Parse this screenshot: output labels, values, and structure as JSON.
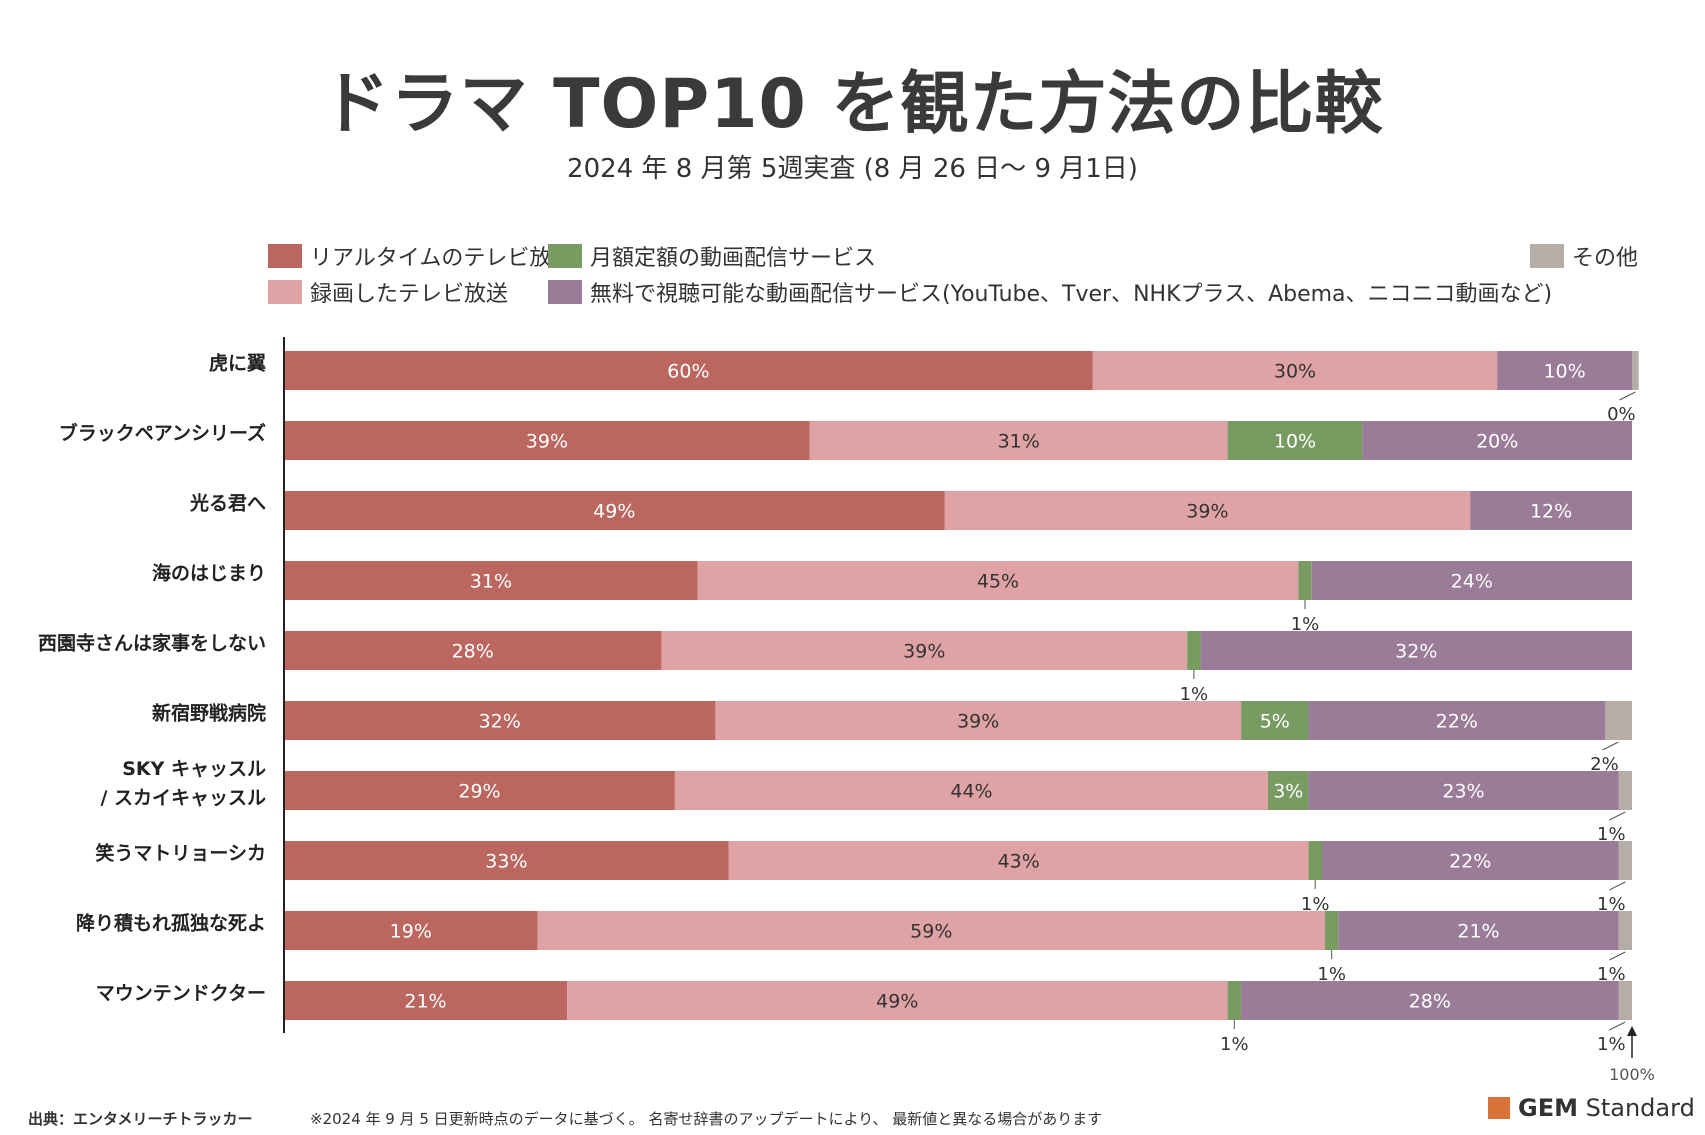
{
  "title": "ドラマ TOP10 を観た方法の比較",
  "subtitle": "2024 年 8 月第 5週実査 (8 月 26 日〜 9 月1日)",
  "footer": {
    "source": "出典：エンタメリーチトラッカー",
    "note": "※2024 年 9 月 5 日更新時点のデータに基づく。 名寄せ辞書のアップデートにより、 最新値と異なる場合があります"
  },
  "brand": {
    "bold": "GEM",
    "rest": " Standard"
  },
  "colors": {
    "realtime": "#bb6760",
    "recorded": "#e0a3a5",
    "subscription": "#789b62",
    "free": "#9b7c98",
    "other": "#b5aea8"
  },
  "chart_data": {
    "type": "bar",
    "orientation": "horizontal",
    "stacked": "100%",
    "categories": [
      "虎に翼",
      "ブラックペアンシリーズ",
      "光る君へ",
      "海のはじまり",
      "西園寺さんは家事をしない",
      "新宿野戦病院",
      "SKY キャッスル / スカイキャッスル",
      "笑うマトリョーシカ",
      "降り積もれ孤独な死よ",
      "マウンテンドクター"
    ],
    "category_lines": [
      [
        "虎に翼"
      ],
      [
        "ブラックペアンシリーズ"
      ],
      [
        "光る君へ"
      ],
      [
        "海のはじまり"
      ],
      [
        "西園寺さんは家事をしない"
      ],
      [
        "新宿野戦病院"
      ],
      [
        "SKY キャッスル",
        "/ スカイキャッスル"
      ],
      [
        "笑うマトリョーシカ"
      ],
      [
        "降り積もれ孤独な死よ"
      ],
      [
        "マウンテンドクター"
      ]
    ],
    "series": [
      {
        "key": "realtime",
        "name": "リアルタイムのテレビ放送",
        "values": [
          60,
          39,
          49,
          31,
          28,
          32,
          29,
          33,
          19,
          21
        ]
      },
      {
        "key": "recorded",
        "name": "録画したテレビ放送",
        "values": [
          30,
          31,
          39,
          45,
          39,
          39,
          44,
          43,
          59,
          49
        ]
      },
      {
        "key": "subscription",
        "name": "月額定額の動画配信サービス",
        "values": [
          0,
          10,
          0,
          1,
          1,
          5,
          3,
          1,
          1,
          1
        ]
      },
      {
        "key": "free",
        "name": "無料で視聴可能な動画配信サービス(YouTube、Tver、NHKプラス、Abema、ニコニコ動画など)",
        "values": [
          10,
          20,
          12,
          24,
          32,
          22,
          23,
          22,
          21,
          28
        ]
      },
      {
        "key": "other",
        "name": "その他",
        "values": [
          0,
          0,
          0,
          0,
          0,
          2,
          1,
          1,
          1,
          1
        ]
      }
    ],
    "label_texts": [
      [
        "60%",
        "30%",
        "",
        "10%",
        "0%"
      ],
      [
        "39%",
        "31%",
        "10%",
        "20%",
        ""
      ],
      [
        "49%",
        "39%",
        "",
        "12%",
        ""
      ],
      [
        "31%",
        "45%",
        "1%",
        "24%",
        ""
      ],
      [
        "28%",
        "39%",
        "1%",
        "32%",
        ""
      ],
      [
        "32%",
        "39%",
        "5%",
        "22%",
        "2%"
      ],
      [
        "29%",
        "44%",
        "3%",
        "23%",
        "1%"
      ],
      [
        "33%",
        "43%",
        "1%",
        "22%",
        "1%"
      ],
      [
        "19%",
        "59%",
        "1%",
        "21%",
        "1%"
      ],
      [
        "21%",
        "49%",
        "1%",
        "28%",
        "1%"
      ]
    ],
    "total_label": "100%",
    "xlim": [
      0,
      100
    ],
    "legend_position": "top"
  }
}
